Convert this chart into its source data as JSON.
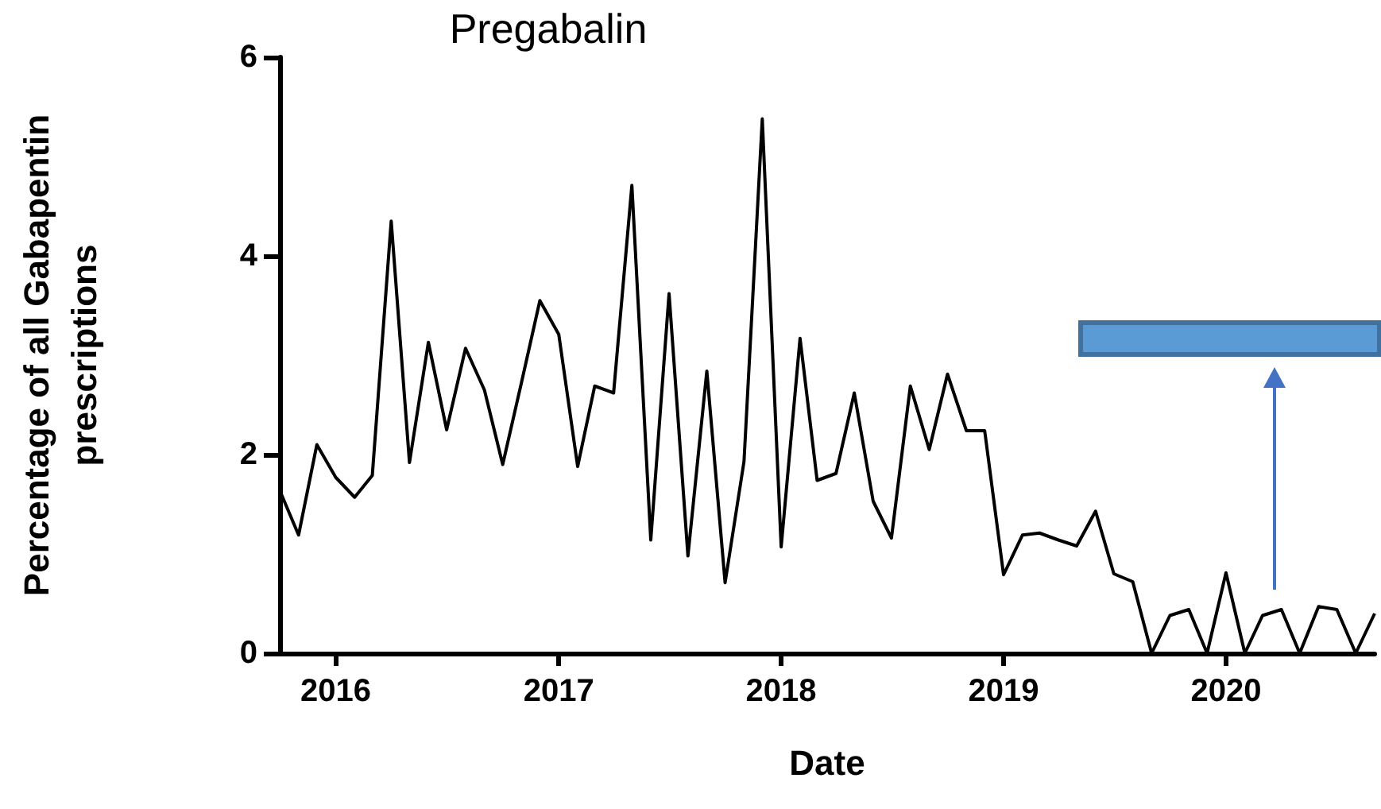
{
  "chart_data": {
    "type": "line",
    "title": "Pregabalin",
    "xlabel": "Date",
    "ylabel": "Percentage of all Gabapentin\nprescriptions",
    "x": [
      "2015-10",
      "2015-11",
      "2015-12",
      "2016-01",
      "2016-02",
      "2016-03",
      "2016-04",
      "2016-05",
      "2016-06",
      "2016-07",
      "2016-08",
      "2016-09",
      "2016-10",
      "2016-11",
      "2016-12",
      "2017-01",
      "2017-02",
      "2017-03",
      "2017-04",
      "2017-05",
      "2017-06",
      "2017-07",
      "2017-08",
      "2017-09",
      "2017-10",
      "2017-11",
      "2017-12",
      "2018-01",
      "2018-02",
      "2018-03",
      "2018-04",
      "2018-05",
      "2018-06",
      "2018-07",
      "2018-08",
      "2018-09",
      "2018-10",
      "2018-11",
      "2018-12",
      "2019-01",
      "2019-02",
      "2019-03",
      "2019-04",
      "2019-05",
      "2019-06",
      "2019-07",
      "2019-08",
      "2019-09",
      "2019-10",
      "2019-11",
      "2019-12",
      "2020-01",
      "2020-02",
      "2020-03",
      "2020-04",
      "2020-05",
      "2020-06",
      "2020-07",
      "2020-08",
      "2020-09"
    ],
    "series": [
      {
        "color": "#000000",
        "values": [
          1.64,
          1.19,
          2.1,
          1.77,
          1.57,
          1.79,
          4.35,
          1.92,
          3.13,
          2.25,
          3.07,
          2.65,
          1.9,
          2.73,
          3.55,
          3.21,
          1.88,
          2.69,
          2.62,
          4.71,
          1.14,
          3.62,
          0.98,
          2.84,
          0.71,
          1.93,
          5.38,
          1.07,
          3.17,
          1.74,
          1.81,
          2.62,
          1.53,
          1.16,
          2.69,
          2.05,
          2.81,
          2.24,
          2.24,
          0.79,
          1.19,
          1.21,
          1.14,
          1.08,
          1.43,
          0.8,
          0.72,
          0,
          0.38,
          0.44,
          0,
          0.81,
          0,
          0.38,
          0.44,
          0,
          0.47,
          0.44,
          0,
          0.4
        ]
      }
    ],
    "xlim": [
      "2015-10",
      "2020-09"
    ],
    "xticks": [
      "2016",
      "2017",
      "2018",
      "2019",
      "2020"
    ],
    "ylim": [
      0,
      6
    ],
    "yticks": [
      0,
      2,
      4,
      6
    ],
    "grid": false,
    "marker": "none",
    "line_style": "solid"
  }
}
